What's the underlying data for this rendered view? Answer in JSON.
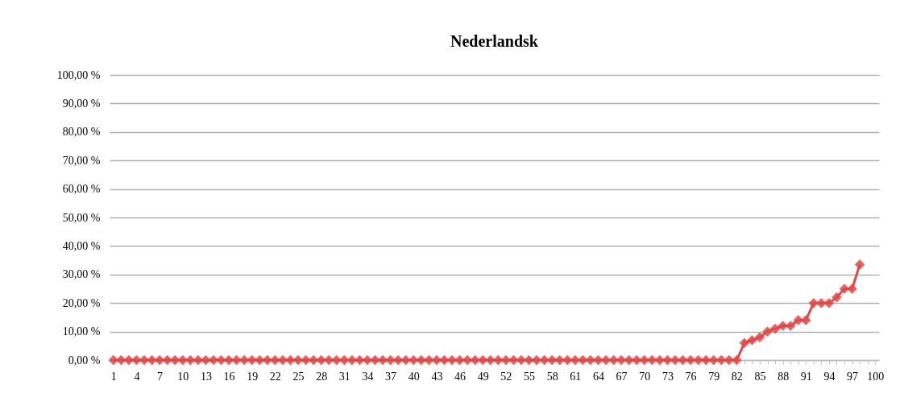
{
  "chart_data": {
    "type": "line",
    "title": "Nederlandsk",
    "categories": [
      "1",
      null,
      null,
      "4",
      null,
      null,
      "7",
      null,
      null,
      "10",
      null,
      null,
      "13",
      null,
      null,
      "16",
      null,
      null,
      "19",
      null,
      null,
      "22",
      null,
      null,
      "25",
      null,
      null,
      "28",
      null,
      null,
      "31",
      null,
      null,
      "34",
      null,
      null,
      "37",
      null,
      null,
      "40",
      null,
      null,
      "43",
      null,
      null,
      "46",
      null,
      null,
      "49",
      null,
      null,
      "52",
      null,
      null,
      "55",
      null,
      null,
      "58",
      null,
      null,
      "61",
      null,
      null,
      "64",
      null,
      null,
      "67",
      null,
      null,
      "70",
      null,
      null,
      "73",
      null,
      null,
      "76",
      null,
      null,
      "79",
      null,
      null,
      "82",
      null,
      null,
      "85",
      null,
      null,
      "88",
      null,
      null,
      "91",
      null,
      null,
      "94",
      null,
      null,
      "97",
      null,
      null,
      "100"
    ],
    "series": [
      {
        "color": "#e04848",
        "values": [
          0,
          0,
          0,
          0,
          0,
          0,
          0,
          0,
          0,
          0,
          0,
          0,
          0,
          0,
          0,
          0,
          0,
          0,
          0,
          0,
          0,
          0,
          0,
          0,
          0,
          0,
          0,
          0,
          0,
          0,
          0,
          0,
          0,
          0,
          0,
          0,
          0,
          0,
          0,
          0,
          0,
          0,
          0,
          0,
          0,
          0,
          0,
          0,
          0,
          0,
          0,
          0,
          0,
          0,
          0,
          0,
          0,
          0,
          0,
          0,
          0,
          0,
          0,
          0,
          0,
          0,
          0,
          0,
          0,
          0,
          0,
          0,
          0,
          0,
          0,
          0,
          0,
          0,
          0,
          0,
          0,
          0,
          6,
          7,
          8,
          10,
          11,
          12,
          12,
          14,
          14,
          20,
          20,
          20,
          22,
          25,
          25,
          33.5,
          null,
          null
        ]
      }
    ],
    "ylim": [
      0,
      100
    ],
    "yticks": [
      {
        "value": 0,
        "label": "0,00 %"
      },
      {
        "value": 10,
        "label": "10,00 %"
      },
      {
        "value": 20,
        "label": "20,00 %"
      },
      {
        "value": 30,
        "label": "30,00 %"
      },
      {
        "value": 40,
        "label": "40,00 %"
      },
      {
        "value": 50,
        "label": "50,00 %"
      },
      {
        "value": 60,
        "label": "60,00 %"
      },
      {
        "value": 70,
        "label": "70,00 %"
      },
      {
        "value": 80,
        "label": "80,00 %"
      },
      {
        "value": 90,
        "label": "90,00 %"
      },
      {
        "value": 100,
        "label": "100,00 %"
      }
    ],
    "grid": "y",
    "legend": false,
    "marker": "diamond",
    "line_style": "solid"
  }
}
